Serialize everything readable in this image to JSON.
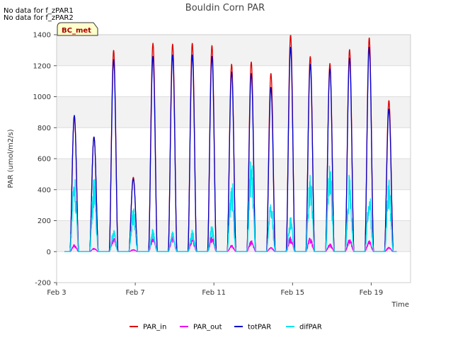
{
  "notes": [
    "No data for f_zPAR1",
    "No data for f_zPAR2"
  ],
  "badge": {
    "label": "BC_met",
    "text_color": "#aa0000",
    "fill": "#ffffcc"
  },
  "chart_data": {
    "type": "line",
    "title": "Bouldin Corn PAR",
    "xlabel": "Time",
    "ylabel": "PAR (umol/m2/s)",
    "xlim": [
      3,
      21
    ],
    "ylim": [
      -200,
      1400
    ],
    "y_ticks": [
      -200,
      0,
      200,
      400,
      600,
      800,
      1000,
      1200,
      1400
    ],
    "x_ticks": [
      {
        "value": 3,
        "label": "Feb 3"
      },
      {
        "value": 7,
        "label": "Feb 7"
      },
      {
        "value": 11,
        "label": "Feb 11"
      },
      {
        "value": 15,
        "label": "Feb 15"
      },
      {
        "value": 19,
        "label": "Feb 19"
      }
    ],
    "x_range_data": [
      3.4,
      20.3
    ],
    "days": [
      3.9,
      4.9,
      5.9,
      6.9,
      7.9,
      8.9,
      9.9,
      10.9,
      11.9,
      12.9,
      13.9,
      14.9,
      15.9,
      16.9,
      17.9,
      18.9,
      19.9
    ],
    "series": [
      {
        "name": "PAR_in",
        "color": "#dd0000",
        "daily_peak": [
          870,
          740,
          1300,
          480,
          1345,
          1340,
          1345,
          1330,
          1210,
          1225,
          1150,
          1400,
          1260,
          1215,
          1305,
          1380,
          975
        ]
      },
      {
        "name": "PAR_out",
        "color": "#ee00ee",
        "daily_peak": [
          50,
          25,
          100,
          15,
          100,
          100,
          90,
          105,
          45,
          75,
          30,
          100,
          95,
          55,
          90,
          80,
          30
        ]
      },
      {
        "name": "totPAR",
        "color": "#0000cc",
        "daily_peak": [
          880,
          740,
          1240,
          470,
          1260,
          1270,
          1270,
          1260,
          1160,
          1150,
          1060,
          1320,
          1210,
          1180,
          1250,
          1320,
          920
        ]
      },
      {
        "name": "difPAR",
        "color": "#00e5ee",
        "daily_peak": [
          530,
          500,
          145,
          290,
          150,
          130,
          140,
          170,
          500,
          650,
          330,
          230,
          540,
          610,
          510,
          410,
          480
        ]
      }
    ],
    "legend_position": "bottom"
  }
}
